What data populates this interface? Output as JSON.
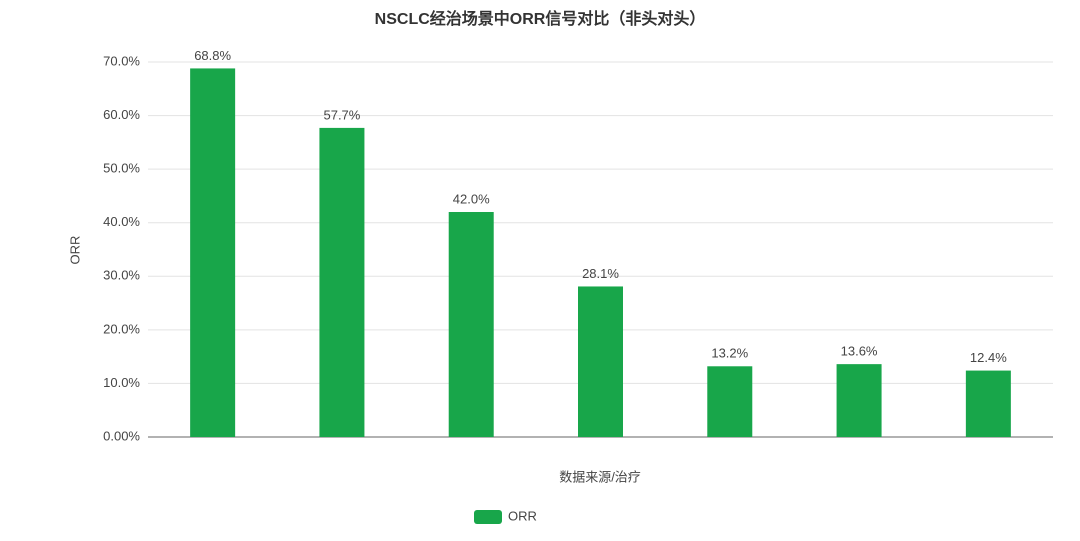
{
  "chart_data": {
    "type": "bar",
    "title": "NSCLC经治场景中ORR信号对比（非头对头）",
    "x_label": "数据来源/治疗",
    "y_label": "ORR",
    "categories": [
      null,
      null,
      null,
      null,
      null,
      null,
      null
    ],
    "series": [
      {
        "name": "ORR",
        "color": "#18a64a",
        "values": [
          68.8,
          57.7,
          42.0,
          28.1,
          13.2,
          13.6,
          12.4
        ],
        "value_labels": [
          "68.8%",
          "57.7%",
          "42.0%",
          "28.1%",
          "13.2%",
          "13.6%",
          "12.4%"
        ]
      }
    ],
    "ylim": [
      0,
      70
    ],
    "yticks": [
      {
        "value": 0,
        "label": "0.00%"
      },
      {
        "value": 10,
        "label": "10.0%"
      },
      {
        "value": 20,
        "label": "20.0%"
      },
      {
        "value": 30,
        "label": "30.0%"
      },
      {
        "value": 40,
        "label": "40.0%"
      },
      {
        "value": 50,
        "label": "50.0%"
      },
      {
        "value": 60,
        "label": "60.0%"
      },
      {
        "value": 70,
        "label": "70.0%"
      }
    ],
    "grid": true,
    "legend": "bottom"
  }
}
